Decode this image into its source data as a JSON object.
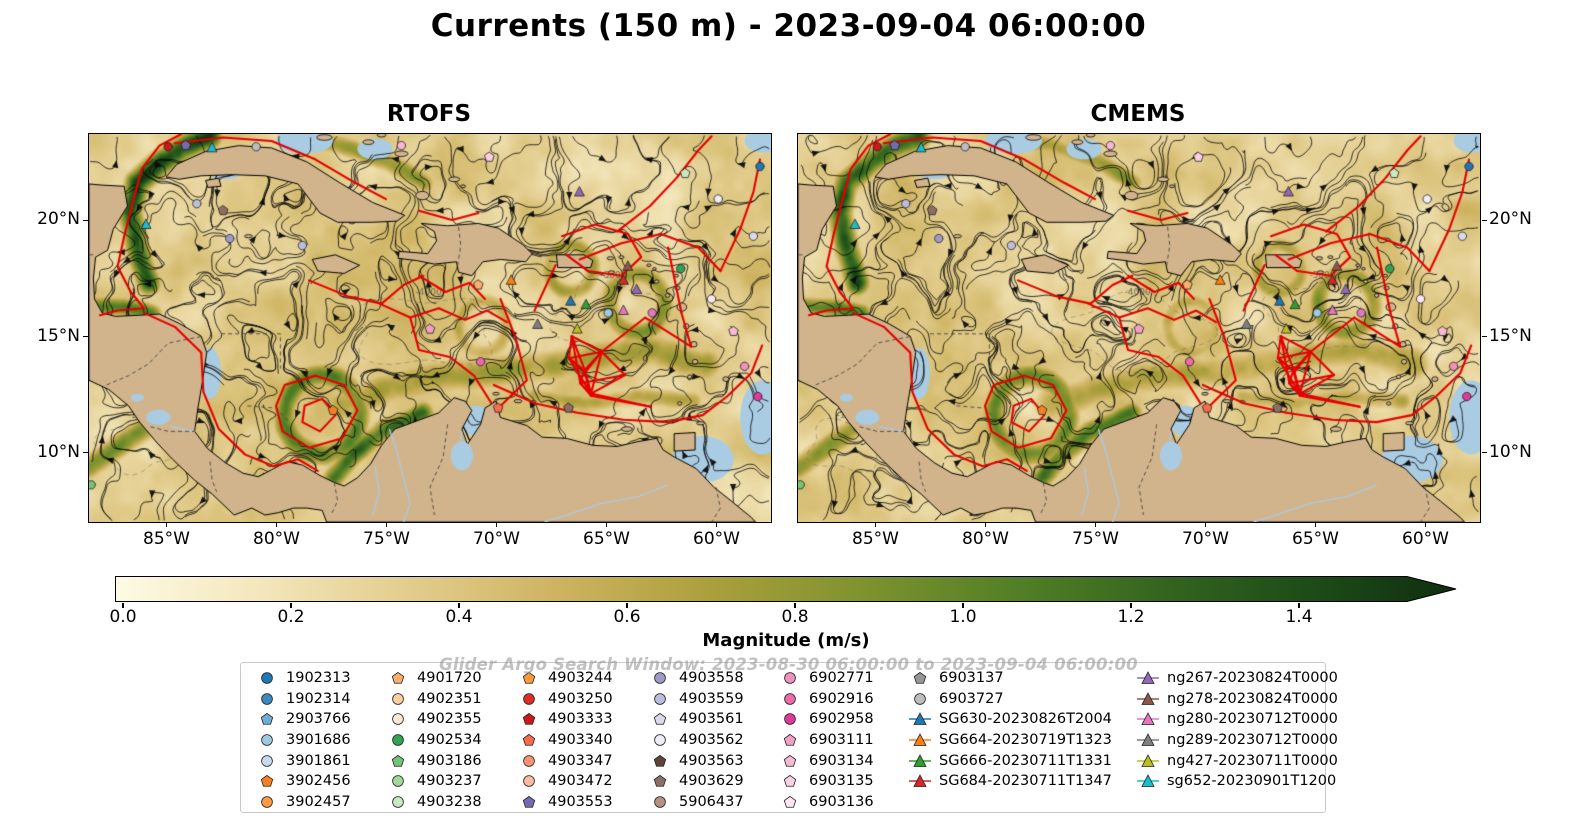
{
  "title": "Currents (150 m) - 2023-09-04 06:00:00",
  "panels": [
    {
      "id": "rtofs",
      "title": "RTOFS"
    },
    {
      "id": "cmems",
      "title": "CMEMS"
    }
  ],
  "axes": {
    "lon_ticks": [
      "85°W",
      "80°W",
      "75°W",
      "70°W",
      "65°W",
      "60°W"
    ],
    "lat_ticks": [
      "20°N",
      "15°N",
      "10°N"
    ],
    "lon_range": [
      -88.5,
      -57.5
    ],
    "lat_range": [
      7.0,
      23.7
    ]
  },
  "colorbar": {
    "label": "Magnitude (m/s)",
    "ticks": [
      "0.0",
      "0.2",
      "0.4",
      "0.6",
      "0.8",
      "1.0",
      "1.2",
      "1.4"
    ],
    "colors": [
      "#fdfbe4",
      "#f3e6ba",
      "#e2cc8c",
      "#cdb35f",
      "#ab9f3c",
      "#7f932e",
      "#548026",
      "#35661f",
      "#1e4c18",
      "#0f2e10"
    ],
    "extend": "max"
  },
  "watermark": "Glider Argo Search Window: 2023-08-30 06:00:00 to 2023-09-04 06:00:00",
  "map_colors": {
    "land": "#d2b48c",
    "shallow_water": "#a9cce3",
    "trajectory": "#e60000",
    "streamline": "#0a0a0a",
    "coastline": "#000000"
  },
  "legend": {
    "columns": [
      [
        {
          "label": "1902313",
          "marker": "circle",
          "color": "#1f77b4"
        },
        {
          "label": "1902314",
          "marker": "circle",
          "color": "#3a8ac2"
        },
        {
          "label": "2903766",
          "marker": "pentagon",
          "color": "#6baed6"
        },
        {
          "label": "3901686",
          "marker": "circle",
          "color": "#9ecae1"
        },
        {
          "label": "3901861",
          "marker": "circle",
          "color": "#c6dbef"
        },
        {
          "label": "3902456",
          "marker": "pentagon",
          "color": "#f58220"
        },
        {
          "label": "3902457",
          "marker": "circle",
          "color": "#fd9a42"
        }
      ],
      [
        {
          "label": "4901720",
          "marker": "pentagon",
          "color": "#fdae6b"
        },
        {
          "label": "4902351",
          "marker": "circle",
          "color": "#fdd0a2"
        },
        {
          "label": "4902355",
          "marker": "circle",
          "color": "#fee8d3"
        },
        {
          "label": "4902534",
          "marker": "circle",
          "color": "#31a354"
        },
        {
          "label": "4903186",
          "marker": "pentagon",
          "color": "#74c476"
        },
        {
          "label": "4903237",
          "marker": "circle",
          "color": "#a1d99b"
        },
        {
          "label": "4903238",
          "marker": "circle",
          "color": "#c7e9c0"
        }
      ],
      [
        {
          "label": "4903244",
          "marker": "pentagon",
          "color": "#fb9a35"
        },
        {
          "label": "4903250",
          "marker": "circle",
          "color": "#de2d26"
        },
        {
          "label": "4903333",
          "marker": "pentagon",
          "color": "#cb181d"
        },
        {
          "label": "4903340",
          "marker": "pentagon",
          "color": "#fb6a4a"
        },
        {
          "label": "4903347",
          "marker": "circle",
          "color": "#fc9272"
        },
        {
          "label": "4903472",
          "marker": "circle",
          "color": "#fcbba1"
        },
        {
          "label": "4903553",
          "marker": "pentagon",
          "color": "#756bb1"
        }
      ],
      [
        {
          "label": "4903558",
          "marker": "circle",
          "color": "#9e9ac8"
        },
        {
          "label": "4903559",
          "marker": "circle",
          "color": "#bcbddc"
        },
        {
          "label": "4903561",
          "marker": "pentagon",
          "color": "#dadaeb"
        },
        {
          "label": "4903562",
          "marker": "circle",
          "color": "#efedf5"
        },
        {
          "label": "4903563",
          "marker": "pentagon",
          "color": "#5f4436"
        },
        {
          "label": "4903629",
          "marker": "pentagon",
          "color": "#8d6e63"
        },
        {
          "label": "5906437",
          "marker": "circle",
          "color": "#b59180"
        }
      ],
      [
        {
          "label": "6902771",
          "marker": "circle",
          "color": "#f291bb"
        },
        {
          "label": "6902916",
          "marker": "circle",
          "color": "#ec6aa8"
        },
        {
          "label": "6902958",
          "marker": "circle",
          "color": "#e03a98"
        },
        {
          "label": "6903111",
          "marker": "pentagon",
          "color": "#f4a0c4"
        },
        {
          "label": "6903134",
          "marker": "pentagon",
          "color": "#f7b9d4"
        },
        {
          "label": "6903135",
          "marker": "pentagon",
          "color": "#fbd0e4"
        },
        {
          "label": "6903136",
          "marker": "pentagon",
          "color": "#fde6f1"
        }
      ],
      [
        {
          "label": "6903137",
          "marker": "pentagon",
          "color": "#969696"
        },
        {
          "label": "6903727",
          "marker": "circle",
          "color": "#bdbdbd"
        },
        {
          "label": "SG630-20230826T2004",
          "marker": "triangle",
          "color": "#1f77b4",
          "line": true
        },
        {
          "label": "SG664-20230719T1323",
          "marker": "triangle",
          "color": "#ff7f0e",
          "line": true
        },
        {
          "label": "SG666-20230711T1331",
          "marker": "triangle",
          "color": "#2ca02c",
          "line": true
        },
        {
          "label": "SG684-20230711T1347",
          "marker": "triangle",
          "color": "#d62728",
          "line": true
        }
      ],
      [
        {
          "label": "ng267-20230824T0000",
          "marker": "triangle",
          "color": "#9467bd",
          "line": true
        },
        {
          "label": "ng278-20230824T0000",
          "marker": "triangle",
          "color": "#8c564b",
          "line": true
        },
        {
          "label": "ng280-20230712T0000",
          "marker": "triangle",
          "color": "#e377c2",
          "line": true
        },
        {
          "label": "ng289-20230712T0000",
          "marker": "triangle",
          "color": "#7f7f7f",
          "line": true
        },
        {
          "label": "ng427-20230711T0000",
          "marker": "triangle",
          "color": "#bcbd22",
          "line": true
        },
        {
          "label": "sg652-20230901T1200",
          "marker": "triangle",
          "color": "#17becf",
          "line": true
        }
      ]
    ]
  },
  "map_markers": [
    {
      "lon": -84.9,
      "lat": 23.15,
      "shape": "circle",
      "color": "#cb181d"
    },
    {
      "lon": -84.1,
      "lat": 23.2,
      "shape": "pentagon",
      "color": "#756bb1"
    },
    {
      "lon": -82.9,
      "lat": 23.1,
      "shape": "triangle",
      "color": "#17becf"
    },
    {
      "lon": -80.9,
      "lat": 23.15,
      "shape": "circle",
      "color": "#bdbdbd"
    },
    {
      "lon": -74.3,
      "lat": 23.2,
      "shape": "circle",
      "color": "#f7b9d4"
    },
    {
      "lon": -70.3,
      "lat": 22.7,
      "shape": "pentagon",
      "color": "#fbd0e4"
    },
    {
      "lon": -61.4,
      "lat": 22.0,
      "shape": "pentagon",
      "color": "#c7e9c0"
    },
    {
      "lon": -58.0,
      "lat": 22.3,
      "shape": "circle",
      "color": "#1f77b4"
    },
    {
      "lon": -83.6,
      "lat": 20.7,
      "shape": "circle",
      "color": "#bcbddc"
    },
    {
      "lon": -85.9,
      "lat": 19.8,
      "shape": "triangle",
      "color": "#17becf"
    },
    {
      "lon": -82.4,
      "lat": 20.4,
      "shape": "pentagon",
      "color": "#8d6e63"
    },
    {
      "lon": -66.2,
      "lat": 21.2,
      "shape": "triangle",
      "color": "#9467bd"
    },
    {
      "lon": -59.9,
      "lat": 20.9,
      "shape": "circle",
      "color": "#efedf5"
    },
    {
      "lon": -82.1,
      "lat": 19.2,
      "shape": "circle",
      "color": "#9e9ac8"
    },
    {
      "lon": -78.8,
      "lat": 18.9,
      "shape": "circle",
      "color": "#bcbddc"
    },
    {
      "lon": -58.3,
      "lat": 19.3,
      "shape": "circle",
      "color": "#dadaeb"
    },
    {
      "lon": -64.0,
      "lat": 18.0,
      "shape": "triangle",
      "color": "#8c564b"
    },
    {
      "lon": -61.6,
      "lat": 17.9,
      "shape": "circle",
      "color": "#31a354"
    },
    {
      "lon": -63.6,
      "lat": 17.0,
      "shape": "triangle",
      "color": "#9467bd"
    },
    {
      "lon": -69.3,
      "lat": 17.4,
      "shape": "triangle",
      "color": "#ff7f0e"
    },
    {
      "lon": -70.8,
      "lat": 17.2,
      "shape": "pentagon",
      "color": "#fdae6b"
    },
    {
      "lon": -66.6,
      "lat": 16.5,
      "shape": "triangle",
      "color": "#1f77b4"
    },
    {
      "lon": -65.9,
      "lat": 16.35,
      "shape": "triangle",
      "color": "#2ca02c"
    },
    {
      "lon": -64.2,
      "lat": 17.4,
      "shape": "triangle",
      "color": "#d62728"
    },
    {
      "lon": -62.9,
      "lat": 16.0,
      "shape": "circle",
      "color": "#e377c2"
    },
    {
      "lon": -64.9,
      "lat": 16.0,
      "shape": "circle",
      "color": "#9ecae1"
    },
    {
      "lon": -66.3,
      "lat": 15.3,
      "shape": "triangle",
      "color": "#bcbd22"
    },
    {
      "lon": -68.1,
      "lat": 15.5,
      "shape": "triangle",
      "color": "#7f7f7f"
    },
    {
      "lon": -64.2,
      "lat": 16.1,
      "shape": "triangle",
      "color": "#e377c2"
    },
    {
      "lon": -73.0,
      "lat": 15.3,
      "shape": "pentagon",
      "color": "#f4a0c4"
    },
    {
      "lon": -70.7,
      "lat": 13.9,
      "shape": "circle",
      "color": "#ec6aa8"
    },
    {
      "lon": -58.7,
      "lat": 13.7,
      "shape": "circle",
      "color": "#f291bb"
    },
    {
      "lon": -58.1,
      "lat": 12.4,
      "shape": "circle",
      "color": "#e03a98"
    },
    {
      "lon": -77.4,
      "lat": 11.8,
      "shape": "pentagon",
      "color": "#f58220"
    },
    {
      "lon": -69.9,
      "lat": 11.9,
      "shape": "pentagon",
      "color": "#fb6a4a"
    },
    {
      "lon": -66.7,
      "lat": 11.9,
      "shape": "pentagon",
      "color": "#8d6e63"
    },
    {
      "lon": -88.4,
      "lat": 8.6,
      "shape": "circle",
      "color": "#74c476"
    },
    {
      "lon": -60.2,
      "lat": 16.6,
      "shape": "circle",
      "color": "#fde6f1"
    },
    {
      "lon": -59.2,
      "lat": 15.2,
      "shape": "pentagon",
      "color": "#f7b9d4"
    }
  ]
}
